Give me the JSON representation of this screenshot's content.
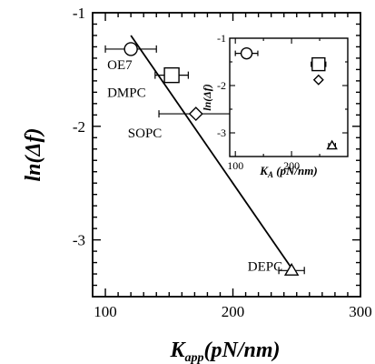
{
  "chart_data": [
    {
      "type": "scatter",
      "xlabel": "K",
      "xlabel_sub": "app",
      "xlabel_units": "(pN/nm)",
      "ylabel": "ln(Δf)",
      "xlim": [
        90,
        300
      ],
      "ylim": [
        -3.5,
        -1.0
      ],
      "xticks": [
        100,
        200,
        300
      ],
      "yticks": [
        -1,
        -2,
        -3
      ],
      "series": [
        {
          "points": [
            {
              "label": "OE7",
              "x": 120,
              "y": -1.32,
              "xerr": 20,
              "marker": "circle"
            },
            {
              "label": "DMPC",
              "x": 152,
              "y": -1.55,
              "xerr": 13,
              "marker": "square"
            },
            {
              "label": "SOPC",
              "x": 171,
              "y": -1.89,
              "xerr": 29,
              "marker": "diamond"
            },
            {
              "label": "DEPC",
              "x": 246,
              "y": -3.27,
              "xerr": 10,
              "marker": "triangle"
            }
          ]
        }
      ],
      "fit_line": {
        "x": [
          120,
          246
        ],
        "y": [
          -1.2,
          -3.25
        ]
      }
    },
    {
      "type": "scatter",
      "xlabel": "K",
      "xlabel_sub": "A",
      "xlabel_units": "(pN/nm)",
      "ylabel": "ln(Δf)",
      "xlim": [
        90,
        300
      ],
      "ylim": [
        -3.5,
        -1.0
      ],
      "xticks": [
        100,
        200
      ],
      "yticks": [
        -1,
        -2,
        -3
      ],
      "points": [
        {
          "x": 120,
          "y": -1.32,
          "xerr": 20,
          "marker": "circle"
        },
        {
          "x": 248,
          "y": -1.55,
          "xerr": 13,
          "marker": "square"
        },
        {
          "x": 248,
          "y": -1.88,
          "marker": "diamond"
        },
        {
          "x": 272,
          "y": -3.27,
          "xerr": 6,
          "marker": "triangle"
        }
      ]
    }
  ]
}
